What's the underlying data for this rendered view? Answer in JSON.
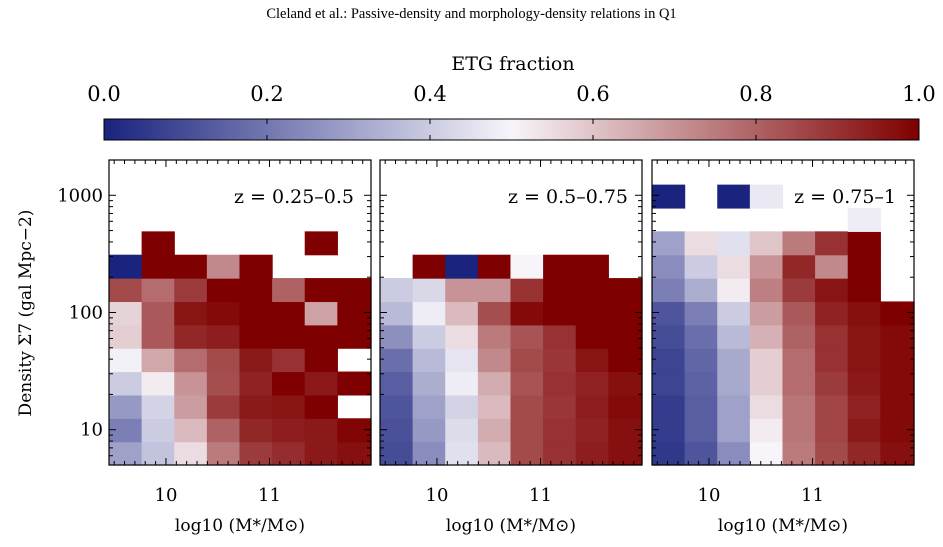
{
  "header": {
    "running_title": "Cleland et al.: Passive-density and morphology-density relations in Q1"
  },
  "colorbar": {
    "label": "ETG fraction",
    "ticks": [
      "0.0",
      "0.2",
      "0.4",
      "0.6",
      "0.8",
      "1.0"
    ],
    "range": [
      0,
      1
    ],
    "colormap": [
      "#1a237e",
      "#f7f5fa",
      "#7f0000"
    ]
  },
  "chart_data": [
    {
      "type": "heatmap",
      "title": "z = 0.25–0.5",
      "xlabel": "log10 (M*/M⊙)",
      "ylabel": "Density Σ7 (gal Mpc−2)",
      "x_ticks": [
        "10",
        "11"
      ],
      "y_ticks": [
        "1000",
        "100",
        "10"
      ],
      "xlim": [
        9.45,
        11.98
      ],
      "log_ylim": [
        0.699,
        3.301
      ],
      "x_edges": [
        9.45,
        9.765,
        10.08,
        10.395,
        10.71,
        11.025,
        11.34,
        11.655,
        11.98
      ],
      "log_y_edges": [
        0.699,
        0.8983,
        1.0977,
        1.297,
        1.4963,
        1.6957,
        1.895,
        2.0943,
        2.2937,
        2.493,
        2.6923
      ],
      "values": [
        [
          0.3,
          0.38,
          0.55,
          0.75,
          0.88,
          0.91,
          0.95,
          0.97
        ],
        [
          0.22,
          0.4,
          0.62,
          0.8,
          0.92,
          0.94,
          0.95,
          0.99
        ],
        [
          0.28,
          0.42,
          0.68,
          0.88,
          0.95,
          0.96,
          1.0,
          null
        ],
        [
          0.4,
          0.52,
          0.7,
          0.84,
          0.93,
          1.0,
          0.95,
          1.0
        ],
        [
          0.49,
          0.66,
          0.78,
          0.85,
          0.95,
          0.9,
          1.0,
          null
        ],
        [
          0.58,
          0.82,
          0.92,
          0.94,
          1.0,
          1.0,
          1.0,
          1.0
        ],
        [
          0.57,
          0.82,
          0.96,
          0.98,
          1.0,
          1.0,
          0.67,
          1.0
        ],
        [
          0.85,
          0.78,
          0.88,
          1.0,
          1.0,
          0.8,
          1.0,
          1.0
        ],
        [
          0.0,
          1.0,
          1.0,
          0.72,
          1.0,
          null,
          null,
          null
        ],
        [
          null,
          1.0,
          null,
          null,
          null,
          null,
          1.0,
          null
        ]
      ]
    },
    {
      "type": "heatmap",
      "title": "z = 0.5–0.75",
      "xlabel": "log10 (M*/M⊙)",
      "x_ticks": [
        "10",
        "11"
      ],
      "xlim": [
        9.45,
        11.98
      ],
      "log_ylim": [
        0.699,
        3.301
      ],
      "x_edges": [
        9.45,
        9.765,
        10.08,
        10.395,
        10.71,
        11.025,
        11.34,
        11.655,
        11.98
      ],
      "log_y_edges": [
        0.699,
        0.8983,
        1.0977,
        1.297,
        1.4963,
        1.6957,
        1.895,
        2.0943,
        2.2937,
        2.493,
        2.6923
      ],
      "values": [
        [
          0.1,
          0.25,
          0.45,
          0.62,
          0.85,
          0.9,
          0.94,
          0.97
        ],
        [
          0.11,
          0.28,
          0.44,
          0.65,
          0.85,
          0.9,
          0.93,
          0.97
        ],
        [
          0.12,
          0.3,
          0.42,
          0.62,
          0.85,
          0.89,
          0.94,
          0.98
        ],
        [
          0.14,
          0.33,
          0.48,
          0.65,
          0.83,
          0.9,
          0.93,
          0.97
        ],
        [
          0.18,
          0.36,
          0.46,
          0.72,
          0.85,
          0.89,
          0.96,
          1.0
        ],
        [
          0.26,
          0.4,
          0.55,
          0.75,
          0.83,
          0.9,
          1.0,
          1.0
        ],
        [
          0.36,
          0.48,
          0.62,
          0.84,
          0.98,
          1.0,
          1.0,
          1.0
        ],
        [
          0.4,
          0.43,
          0.7,
          0.7,
          0.9,
          1.0,
          1.0,
          1.0
        ],
        [
          null,
          1.0,
          0.0,
          1.0,
          0.5,
          1.0,
          1.0,
          null
        ],
        [
          null,
          null,
          null,
          null,
          null,
          null,
          null,
          null
        ]
      ]
    },
    {
      "type": "heatmap",
      "title": "z = 0.75–1",
      "xlabel": "log10 (M*/M⊙)",
      "x_ticks": [
        "10",
        "11"
      ],
      "xlim": [
        9.45,
        11.98
      ],
      "log_ylim": [
        0.699,
        3.301
      ],
      "x_edges": [
        9.45,
        9.765,
        10.08,
        10.395,
        10.71,
        11.025,
        11.34,
        11.655,
        11.98
      ],
      "log_y_edges": [
        0.699,
        0.8983,
        1.0977,
        1.297,
        1.4963,
        1.6957,
        1.895,
        2.0943,
        2.2937,
        2.493,
        2.6923,
        2.8917,
        3.091
      ],
      "values": [
        [
          0.05,
          0.12,
          0.25,
          0.5,
          0.75,
          0.85,
          0.92,
          0.97
        ],
        [
          0.06,
          0.14,
          0.3,
          0.52,
          0.76,
          0.86,
          0.95,
          0.98
        ],
        [
          0.06,
          0.14,
          0.3,
          0.55,
          0.76,
          0.86,
          0.93,
          0.98
        ],
        [
          0.08,
          0.15,
          0.32,
          0.58,
          0.78,
          0.88,
          0.95,
          0.98
        ],
        [
          0.08,
          0.16,
          0.32,
          0.58,
          0.78,
          0.9,
          0.96,
          0.98
        ],
        [
          0.1,
          0.18,
          0.36,
          0.64,
          0.8,
          0.9,
          0.96,
          0.98
        ],
        [
          0.12,
          0.22,
          0.4,
          0.68,
          0.82,
          0.93,
          0.97,
          1.0
        ],
        [
          0.22,
          0.33,
          0.52,
          0.74,
          0.88,
          0.96,
          1.0,
          null
        ],
        [
          0.25,
          0.4,
          0.55,
          0.7,
          0.92,
          0.72,
          1.0,
          null
        ],
        [
          0.3,
          0.55,
          0.45,
          0.6,
          0.75,
          0.9,
          1.0,
          null
        ],
        [
          null,
          null,
          null,
          null,
          null,
          null,
          0.48,
          null
        ],
        [
          0.0,
          null,
          0.0,
          0.47,
          null,
          null,
          null,
          null
        ]
      ]
    }
  ]
}
